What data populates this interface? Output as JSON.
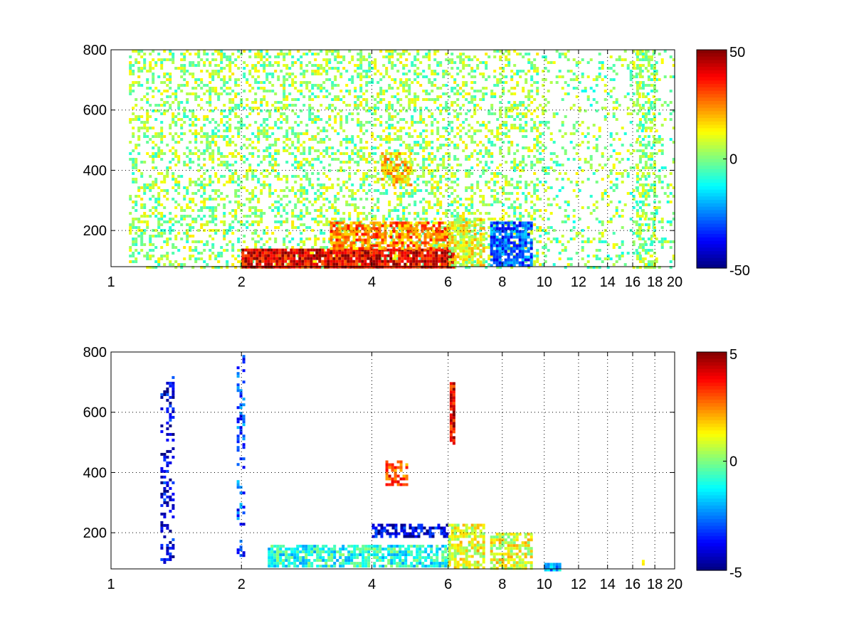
{
  "chart_data": [
    {
      "type": "heatmap",
      "title": "",
      "xlabel": "",
      "ylabel": "",
      "x_scale": "log",
      "xlim": [
        1,
        20
      ],
      "ylim": [
        80,
        800
      ],
      "x_ticks": [
        1,
        2,
        4,
        6,
        8,
        10,
        12,
        14,
        16,
        18,
        20
      ],
      "y_ticks": [
        200,
        400,
        600,
        800
      ],
      "grid": true,
      "colormap": "jet",
      "colorbar": {
        "range": [
          -50,
          50
        ],
        "ticks": [
          50,
          0,
          -50
        ]
      },
      "regions": [
        {
          "x": [
            1.1,
            10
          ],
          "y": [
            80,
            800
          ],
          "value": 3,
          "density": 0.35
        },
        {
          "x": [
            10,
            20
          ],
          "y": [
            80,
            800
          ],
          "value": 1,
          "density": 0.18
        },
        {
          "x": [
            2,
            6.2
          ],
          "y": [
            80,
            140
          ],
          "value": 40,
          "density": 0.9
        },
        {
          "x": [
            3.2,
            6
          ],
          "y": [
            140,
            230
          ],
          "value": 25,
          "density": 0.7
        },
        {
          "x": [
            4.2,
            4.9
          ],
          "y": [
            350,
            460
          ],
          "value": 18,
          "density": 0.6
        },
        {
          "x": [
            6,
            7.3
          ],
          "y": [
            80,
            240
          ],
          "value": 10,
          "density": 0.75
        },
        {
          "x": [
            7.5,
            9.4
          ],
          "y": [
            80,
            230
          ],
          "value": -28,
          "density": 0.8
        },
        {
          "x": [
            16.3,
            18
          ],
          "y": [
            80,
            800
          ],
          "value": 2,
          "density": 0.45
        }
      ]
    },
    {
      "type": "heatmap",
      "title": "",
      "xlabel": "",
      "ylabel": "",
      "x_scale": "log",
      "xlim": [
        1,
        20
      ],
      "ylim": [
        80,
        800
      ],
      "x_ticks": [
        1,
        2,
        4,
        6,
        8,
        10,
        12,
        14,
        16,
        18,
        20
      ],
      "y_ticks": [
        200,
        400,
        600,
        800
      ],
      "grid": true,
      "colormap": "jet",
      "colorbar": {
        "range": [
          -5,
          5
        ],
        "ticks": [
          5,
          0,
          -5
        ]
      },
      "regions": [
        {
          "x": [
            2.3,
            6
          ],
          "y": [
            85,
            160
          ],
          "value": -1,
          "density": 0.75
        },
        {
          "x": [
            4,
            6
          ],
          "y": [
            190,
            230
          ],
          "value": -4,
          "density": 0.6
        },
        {
          "x": [
            4.3,
            4.8
          ],
          "y": [
            360,
            440
          ],
          "value": 3,
          "density": 0.55
        },
        {
          "x": [
            6,
            7.3
          ],
          "y": [
            80,
            230
          ],
          "value": 1,
          "density": 0.7
        },
        {
          "x": [
            7.5,
            9.3
          ],
          "y": [
            85,
            200
          ],
          "value": 1,
          "density": 0.7
        },
        {
          "x": [
            6.05,
            6.2
          ],
          "y": [
            500,
            700
          ],
          "value": 4,
          "density": 0.9
        },
        {
          "x": [
            1.3,
            1.4
          ],
          "y": [
            100,
            720
          ],
          "value": -4,
          "density": 0.35
        },
        {
          "x": [
            1.95,
            2.02
          ],
          "y": [
            120,
            790
          ],
          "value": -3,
          "density": 0.3
        },
        {
          "x": [
            10,
            10.8
          ],
          "y": [
            80,
            100
          ],
          "value": -2,
          "density": 0.9
        },
        {
          "x": [
            16.8,
            17
          ],
          "y": [
            95,
            110
          ],
          "value": 2,
          "density": 0.9
        }
      ]
    }
  ]
}
